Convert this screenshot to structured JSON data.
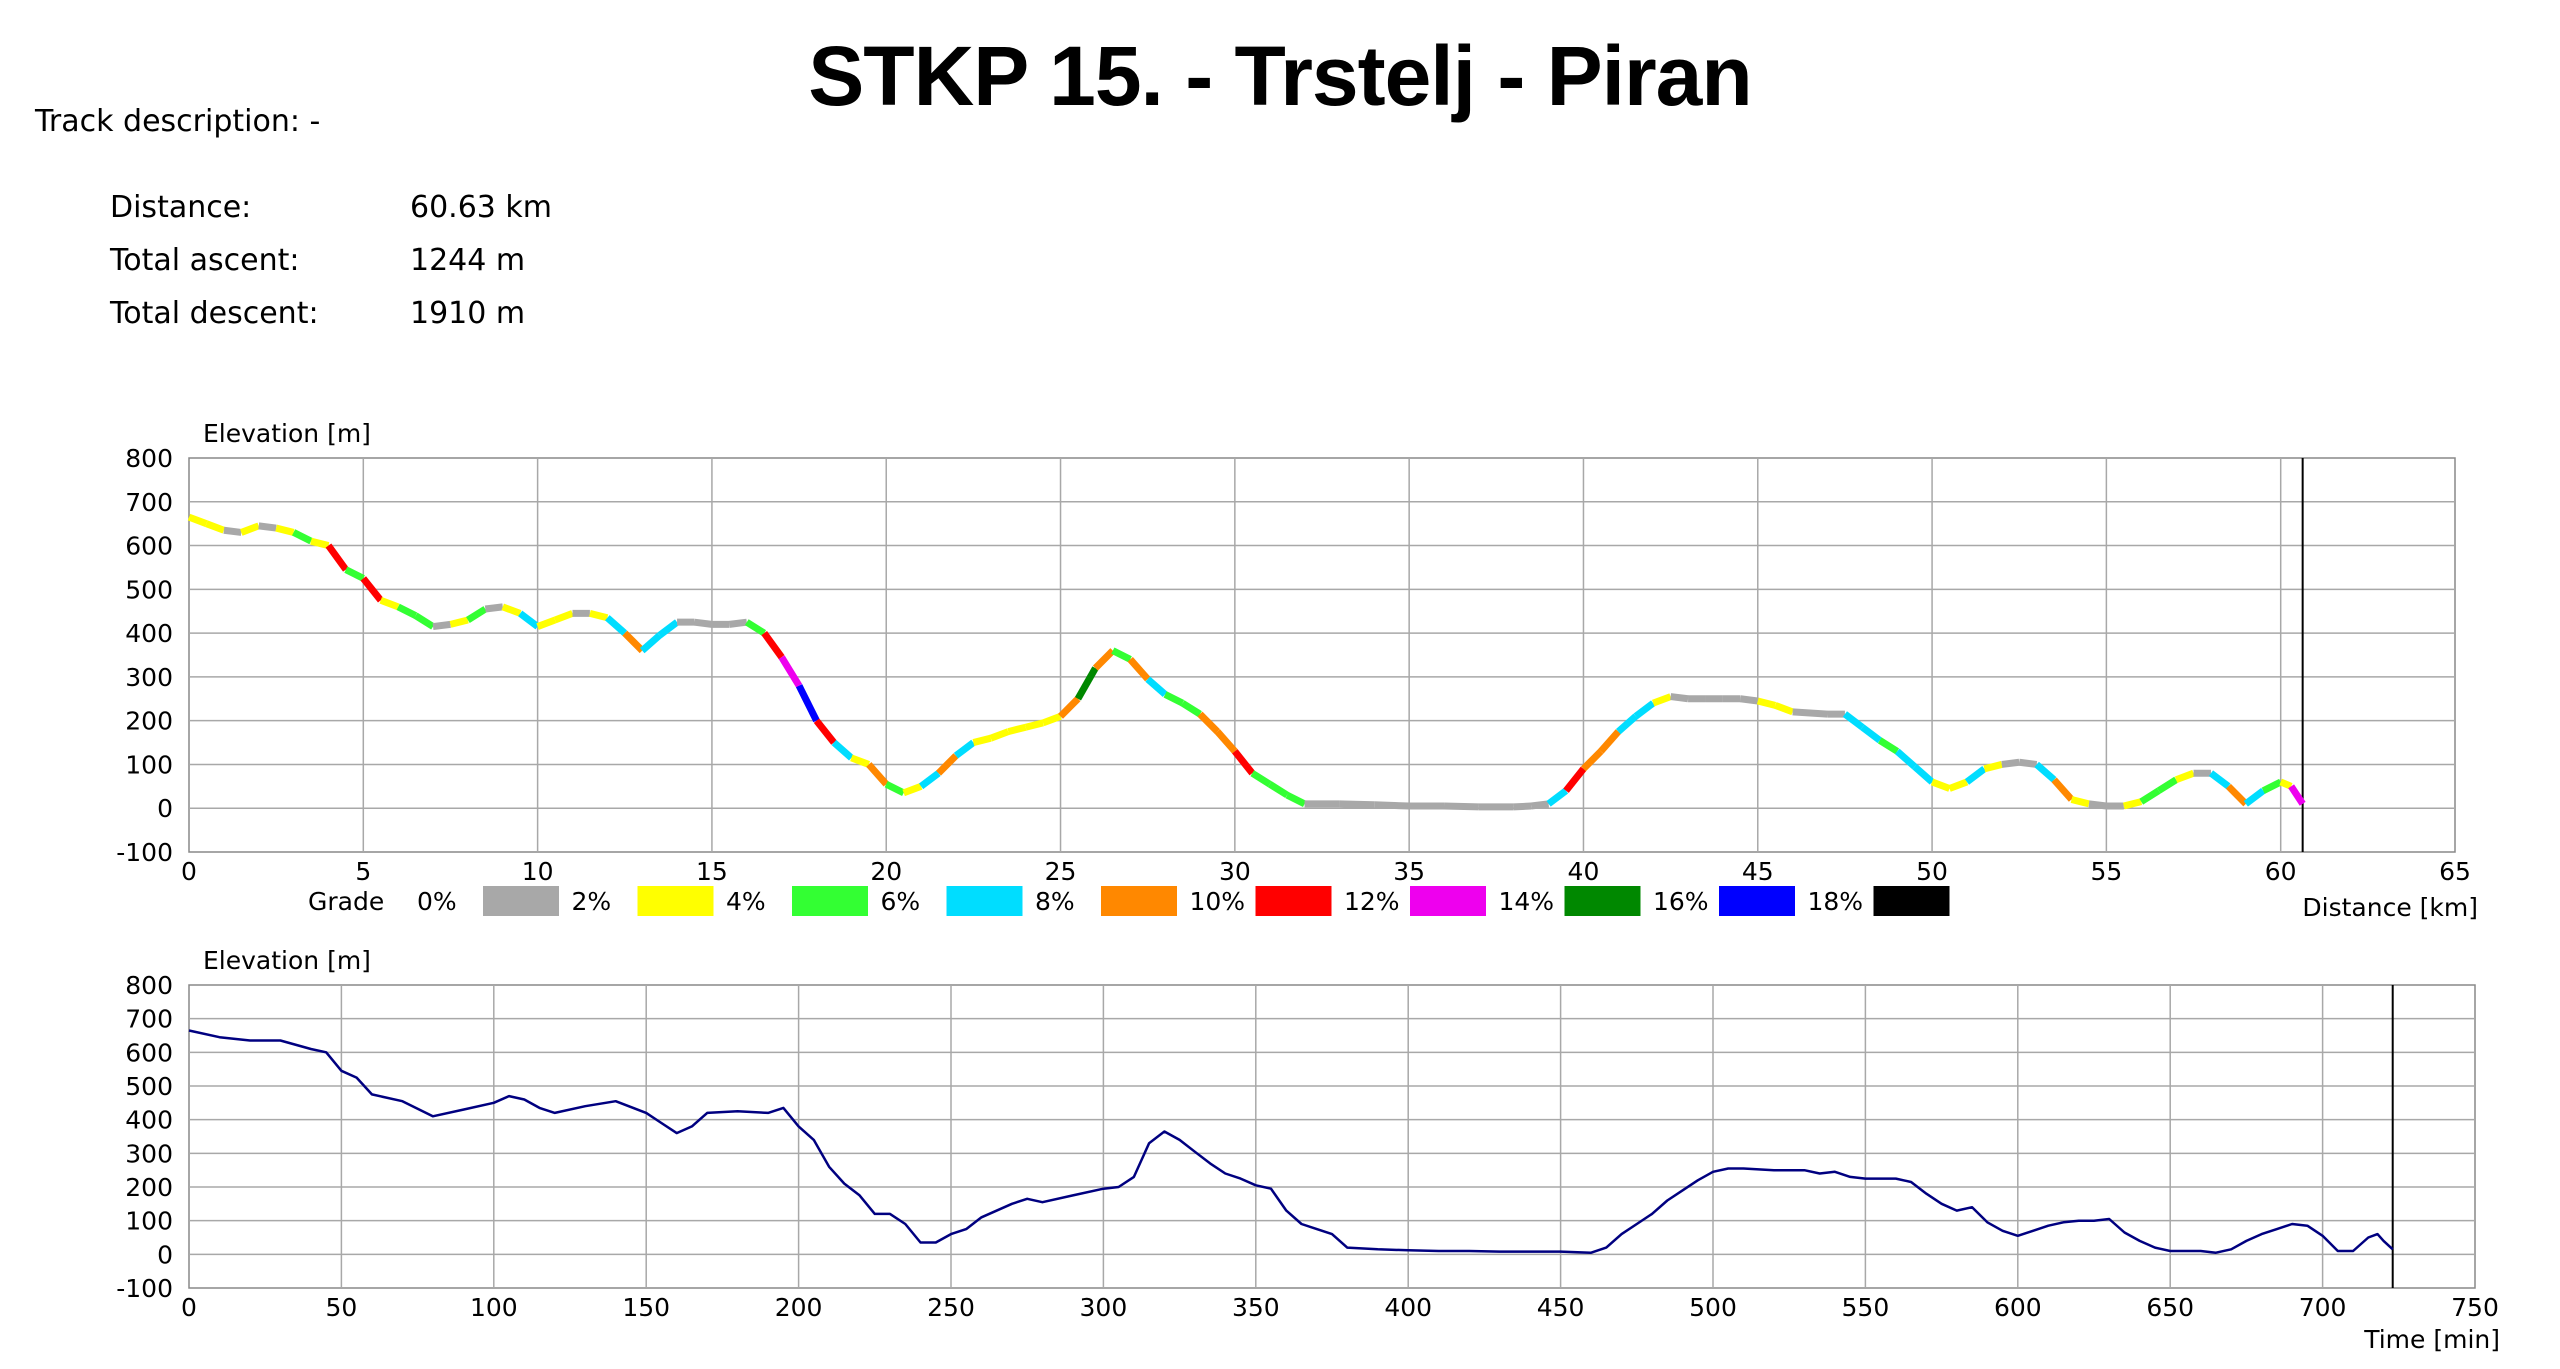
{
  "title": "STKP 15. - Trstelj - Piran",
  "track_description": "Track description: -",
  "stats": [
    {
      "label": "Distance:",
      "value": "60.63 km"
    },
    {
      "label": "Total ascent:",
      "value": "1244 m"
    },
    {
      "label": "Total descent:",
      "value": "1910 m"
    }
  ],
  "legend": {
    "title": "Grade",
    "items": [
      {
        "label": "0%",
        "color": "#a8a8a8"
      },
      {
        "label": "2%",
        "color": "#ffff00"
      },
      {
        "label": "4%",
        "color": "#33ff33"
      },
      {
        "label": "6%",
        "color": "#00ddff"
      },
      {
        "label": "8%",
        "color": "#ff8800"
      },
      {
        "label": "10%",
        "color": "#ff0000"
      },
      {
        "label": "12%",
        "color": "#ee00ee"
      },
      {
        "label": "14%",
        "color": "#008800"
      },
      {
        "label": "16%",
        "color": "#0000ff"
      },
      {
        "label": "18%",
        "color": "#000000"
      }
    ]
  },
  "chart_data": [
    {
      "type": "line",
      "ylabel": "Elevation [m]",
      "xlabel": "Distance [km]",
      "xlim": [
        0,
        65
      ],
      "ylim": [
        -100,
        800
      ],
      "xticks": [
        "0",
        "5",
        "10",
        "15",
        "20",
        "25",
        "30",
        "35",
        "40",
        "45",
        "50",
        "55",
        "60",
        "65"
      ],
      "yticks": [
        "800",
        "700",
        "600",
        "500",
        "400",
        "300",
        "200",
        "100",
        "0",
        "-100"
      ],
      "grid": true,
      "end_marker_x": 60.63,
      "color_by": "grade",
      "points": [
        [
          0,
          665
        ],
        [
          0.5,
          650
        ],
        [
          1,
          635
        ],
        [
          1.5,
          630
        ],
        [
          2,
          645
        ],
        [
          2.5,
          640
        ],
        [
          3,
          630
        ],
        [
          3.5,
          610
        ],
        [
          4,
          600
        ],
        [
          4.5,
          545
        ],
        [
          5,
          525
        ],
        [
          5.5,
          475
        ],
        [
          6,
          460
        ],
        [
          6.5,
          440
        ],
        [
          7,
          415
        ],
        [
          7.5,
          420
        ],
        [
          8,
          430
        ],
        [
          8.5,
          455
        ],
        [
          9,
          460
        ],
        [
          9.5,
          445
        ],
        [
          10,
          415
        ],
        [
          10.5,
          430
        ],
        [
          11,
          445
        ],
        [
          11.5,
          445
        ],
        [
          12,
          435
        ],
        [
          12.5,
          400
        ],
        [
          13,
          360
        ],
        [
          13.5,
          395
        ],
        [
          14,
          425
        ],
        [
          14.5,
          425
        ],
        [
          15,
          420
        ],
        [
          15.5,
          420
        ],
        [
          16,
          425
        ],
        [
          16.5,
          400
        ],
        [
          17,
          345
        ],
        [
          17.5,
          280
        ],
        [
          18,
          200
        ],
        [
          18.5,
          150
        ],
        [
          19,
          115
        ],
        [
          19.5,
          100
        ],
        [
          20,
          55
        ],
        [
          20.5,
          35
        ],
        [
          21,
          50
        ],
        [
          21.5,
          80
        ],
        [
          22,
          120
        ],
        [
          22.5,
          150
        ],
        [
          23,
          160
        ],
        [
          23.5,
          175
        ],
        [
          24,
          185
        ],
        [
          24.5,
          195
        ],
        [
          25,
          210
        ],
        [
          25.5,
          250
        ],
        [
          26,
          320
        ],
        [
          26.5,
          360
        ],
        [
          27,
          340
        ],
        [
          27.5,
          295
        ],
        [
          28,
          260
        ],
        [
          28.5,
          240
        ],
        [
          29,
          215
        ],
        [
          29.5,
          175
        ],
        [
          30,
          130
        ],
        [
          30.5,
          80
        ],
        [
          31,
          55
        ],
        [
          31.5,
          30
        ],
        [
          32,
          10
        ],
        [
          33,
          10
        ],
        [
          34,
          8
        ],
        [
          35,
          5
        ],
        [
          36,
          5
        ],
        [
          37,
          3
        ],
        [
          38,
          3
        ],
        [
          38.5,
          5
        ],
        [
          39,
          10
        ],
        [
          39.5,
          40
        ],
        [
          40,
          90
        ],
        [
          40.5,
          130
        ],
        [
          41,
          175
        ],
        [
          41.5,
          210
        ],
        [
          42,
          240
        ],
        [
          42.5,
          255
        ],
        [
          43,
          250
        ],
        [
          43.5,
          250
        ],
        [
          44,
          250
        ],
        [
          44.5,
          250
        ],
        [
          45,
          245
        ],
        [
          45.5,
          235
        ],
        [
          46,
          220
        ],
        [
          47,
          215
        ],
        [
          47.5,
          215
        ],
        [
          48,
          185
        ],
        [
          48.5,
          155
        ],
        [
          49,
          130
        ],
        [
          49.5,
          95
        ],
        [
          50,
          60
        ],
        [
          50.5,
          45
        ],
        [
          51,
          60
        ],
        [
          51.5,
          90
        ],
        [
          52,
          100
        ],
        [
          52.5,
          105
        ],
        [
          53,
          100
        ],
        [
          53.5,
          65
        ],
        [
          54,
          20
        ],
        [
          54.5,
          10
        ],
        [
          55,
          5
        ],
        [
          55.5,
          5
        ],
        [
          56,
          15
        ],
        [
          56.5,
          40
        ],
        [
          57,
          65
        ],
        [
          57.5,
          80
        ],
        [
          58,
          80
        ],
        [
          58.5,
          50
        ],
        [
          59,
          10
        ],
        [
          59.5,
          40
        ],
        [
          60,
          60
        ],
        [
          60.3,
          50
        ],
        [
          60.63,
          10
        ]
      ]
    },
    {
      "type": "line",
      "ylabel": "Elevation [m]",
      "xlabel": "Time [min]",
      "xlim": [
        0,
        750
      ],
      "ylim": [
        -100,
        800
      ],
      "xticks": [
        "0",
        "50",
        "100",
        "150",
        "200",
        "250",
        "300",
        "350",
        "400",
        "450",
        "500",
        "550",
        "600",
        "650",
        "700",
        "750"
      ],
      "yticks": [
        "800",
        "700",
        "600",
        "500",
        "400",
        "300",
        "200",
        "100",
        "0",
        "-100"
      ],
      "grid": true,
      "end_marker_x": 723,
      "line_color": "#000080",
      "points": [
        [
          0,
          665
        ],
        [
          10,
          645
        ],
        [
          20,
          635
        ],
        [
          30,
          635
        ],
        [
          40,
          610
        ],
        [
          45,
          600
        ],
        [
          50,
          545
        ],
        [
          55,
          525
        ],
        [
          60,
          475
        ],
        [
          70,
          455
        ],
        [
          80,
          410
        ],
        [
          90,
          430
        ],
        [
          100,
          450
        ],
        [
          105,
          470
        ],
        [
          110,
          460
        ],
        [
          115,
          435
        ],
        [
          120,
          420
        ],
        [
          130,
          440
        ],
        [
          140,
          455
        ],
        [
          150,
          420
        ],
        [
          155,
          390
        ],
        [
          160,
          360
        ],
        [
          165,
          380
        ],
        [
          170,
          420
        ],
        [
          180,
          425
        ],
        [
          190,
          420
        ],
        [
          195,
          435
        ],
        [
          200,
          380
        ],
        [
          205,
          340
        ],
        [
          210,
          260
        ],
        [
          215,
          210
        ],
        [
          220,
          175
        ],
        [
          225,
          120
        ],
        [
          230,
          120
        ],
        [
          235,
          90
        ],
        [
          240,
          35
        ],
        [
          245,
          35
        ],
        [
          250,
          60
        ],
        [
          255,
          75
        ],
        [
          260,
          110
        ],
        [
          270,
          150
        ],
        [
          275,
          165
        ],
        [
          280,
          155
        ],
        [
          290,
          175
        ],
        [
          300,
          195
        ],
        [
          305,
          200
        ],
        [
          310,
          230
        ],
        [
          315,
          330
        ],
        [
          320,
          365
        ],
        [
          325,
          340
        ],
        [
          330,
          305
        ],
        [
          335,
          270
        ],
        [
          340,
          240
        ],
        [
          345,
          225
        ],
        [
          350,
          205
        ],
        [
          355,
          195
        ],
        [
          360,
          130
        ],
        [
          365,
          90
        ],
        [
          370,
          75
        ],
        [
          375,
          60
        ],
        [
          380,
          20
        ],
        [
          390,
          15
        ],
        [
          400,
          12
        ],
        [
          410,
          10
        ],
        [
          420,
          10
        ],
        [
          430,
          8
        ],
        [
          440,
          8
        ],
        [
          450,
          8
        ],
        [
          460,
          5
        ],
        [
          465,
          20
        ],
        [
          470,
          60
        ],
        [
          475,
          90
        ],
        [
          480,
          120
        ],
        [
          485,
          160
        ],
        [
          490,
          190
        ],
        [
          495,
          220
        ],
        [
          500,
          245
        ],
        [
          505,
          255
        ],
        [
          510,
          255
        ],
        [
          520,
          250
        ],
        [
          530,
          250
        ],
        [
          535,
          240
        ],
        [
          540,
          245
        ],
        [
          545,
          230
        ],
        [
          550,
          225
        ],
        [
          560,
          225
        ],
        [
          565,
          215
        ],
        [
          570,
          180
        ],
        [
          575,
          150
        ],
        [
          580,
          130
        ],
        [
          585,
          140
        ],
        [
          590,
          95
        ],
        [
          595,
          70
        ],
        [
          600,
          55
        ],
        [
          605,
          70
        ],
        [
          610,
          85
        ],
        [
          615,
          95
        ],
        [
          620,
          100
        ],
        [
          625,
          100
        ],
        [
          630,
          105
        ],
        [
          635,
          65
        ],
        [
          640,
          40
        ],
        [
          645,
          20
        ],
        [
          650,
          10
        ],
        [
          655,
          10
        ],
        [
          660,
          10
        ],
        [
          665,
          5
        ],
        [
          670,
          15
        ],
        [
          675,
          40
        ],
        [
          680,
          60
        ],
        [
          685,
          75
        ],
        [
          690,
          90
        ],
        [
          695,
          85
        ],
        [
          700,
          55
        ],
        [
          705,
          10
        ],
        [
          710,
          10
        ],
        [
          715,
          50
        ],
        [
          718,
          60
        ],
        [
          720,
          40
        ],
        [
          723,
          15
        ]
      ]
    }
  ]
}
